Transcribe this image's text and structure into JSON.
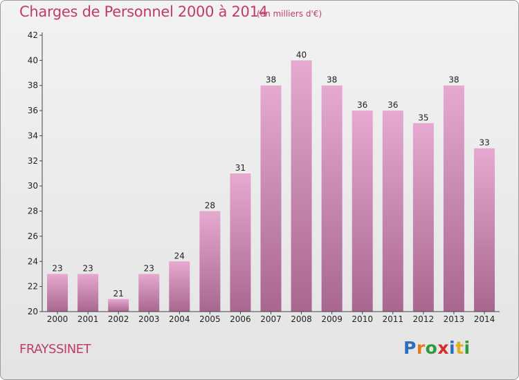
{
  "header": {
    "title": "Charges de Personnel 2000 à 2014",
    "unit": "(en milliers d'€)"
  },
  "footer": {
    "commune": "FRAYSSINET",
    "logo_letters": [
      "P",
      "r",
      "o",
      "x",
      "i",
      "t",
      "i"
    ],
    "logo_colors": [
      "#2a6fc1",
      "#e07b1c",
      "#2e9a3c",
      "#d92a2a",
      "#2a6fc1",
      "#e0b01c",
      "#2e9a3c"
    ]
  },
  "colors": {
    "bar_top": "#e6a9d0",
    "bar_bottom": "#a8678e",
    "accent": "#c03a6e"
  },
  "chart_data": {
    "type": "bar",
    "title": "Charges de Personnel 2000 à 2014",
    "subtitle": "(en milliers d'€)",
    "categories": [
      "2000",
      "2001",
      "2002",
      "2003",
      "2004",
      "2005",
      "2006",
      "2007",
      "2008",
      "2009",
      "2010",
      "2011",
      "2012",
      "2013",
      "2014"
    ],
    "values": [
      23,
      23,
      21,
      23,
      24,
      28,
      31,
      38,
      40,
      38,
      36,
      36,
      35,
      38,
      33
    ],
    "ylim": [
      20,
      42
    ],
    "yticks": [
      20,
      22,
      24,
      26,
      28,
      30,
      32,
      34,
      36,
      38,
      40,
      42
    ],
    "grid": false,
    "legend": "none"
  }
}
